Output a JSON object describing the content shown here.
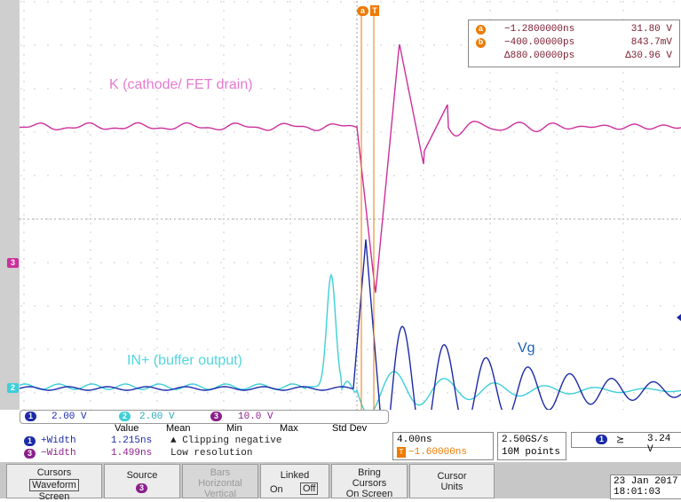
{
  "colors": {
    "ch1": "#1b2aa8",
    "ch2": "#3ccfd8",
    "ch3": "#cc2f9c",
    "cursor": "#ee7a00",
    "label_ch3": "#e67ad2",
    "label_ch2": "#52d6df",
    "label_vg": "#1f62b8"
  },
  "cursor_readout": {
    "a": {
      "badge": "a",
      "time": "−1.2800000ns",
      "value": "31.80 V"
    },
    "b": {
      "badge": "b",
      "time": "−400.00000ps",
      "value": "843.7mV"
    },
    "delta": {
      "time": "Δ880.00000ps",
      "value": "Δ30.96 V"
    }
  },
  "trace_labels": {
    "ch3": "K (cathode/ FET drain)",
    "ch2": "IN+ (buffer output)",
    "ch1": "Vg"
  },
  "channels": [
    {
      "badge": "1",
      "scale": "2.00 V"
    },
    {
      "badge": "2",
      "scale": "2.00 V"
    },
    {
      "badge": "3",
      "scale": "10.0 V"
    }
  ],
  "measurements": {
    "headers": [
      "Value",
      "Mean",
      "Min",
      "Max",
      "Std Dev"
    ],
    "rows": [
      {
        "badge": "1",
        "name": "+Width",
        "value": "1.215ns"
      },
      {
        "badge": "3",
        "name": "−Width",
        "value": "1.499ns"
      }
    ],
    "notes": [
      "▲ Clipping negative",
      "Low resolution"
    ]
  },
  "horizontal": {
    "scale": "4.00ns",
    "trigger_pos": "−1.60000ns"
  },
  "acquisition": {
    "rate": "2.50GS/s",
    "points": "10M points"
  },
  "trigger": {
    "badge": "1",
    "slope": "⪰",
    "level": "3.24 V"
  },
  "menu": {
    "cursors": {
      "line1": "Cursors",
      "line2": "Waveform",
      "line3": "Screen"
    },
    "source": {
      "label": "Source",
      "badge": "3"
    },
    "bars": {
      "line1": "Bars",
      "line2": "Horizontal",
      "line3": "Vertical"
    },
    "linked": {
      "label": "Linked",
      "on": "On",
      "off": "Off"
    },
    "bring": {
      "line1": "Bring",
      "line2": "Cursors",
      "line3": "On Screen"
    },
    "units": {
      "line1": "Cursor",
      "line2": "Units"
    }
  },
  "datetime": {
    "date": "23 Jan 2017",
    "time": "18:01:03"
  }
}
